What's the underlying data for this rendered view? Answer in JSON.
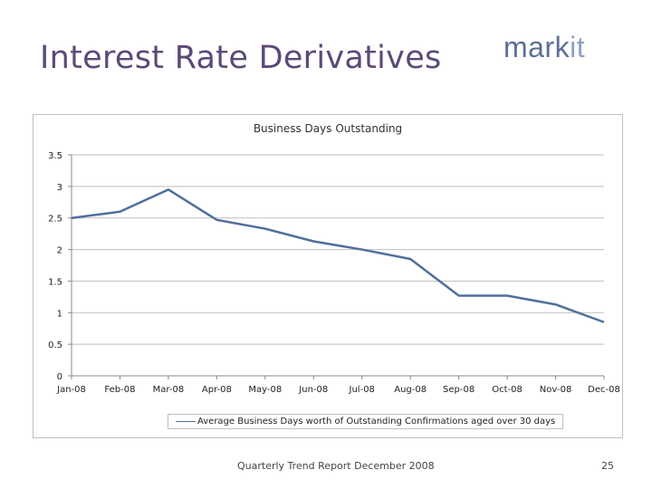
{
  "slide": {
    "title": "Interest Rate Derivatives",
    "logo_main": "mark",
    "logo_accent": "it",
    "footer": "Quarterly Trend Report December 2008",
    "page_number": "25"
  },
  "chart_data": {
    "type": "line",
    "title": "Business Days Outstanding",
    "xlabel": "",
    "ylabel": "",
    "categories": [
      "Jan-08",
      "Feb-08",
      "Mar-08",
      "Apr-08",
      "May-08",
      "Jun-08",
      "Jul-08",
      "Aug-08",
      "Sep-08",
      "Oct-08",
      "Nov-08",
      "Dec-08"
    ],
    "series": [
      {
        "name": "Average Business Days worth of Outstanding Confirmations aged over 30 days",
        "values": [
          2.5,
          2.6,
          2.95,
          2.47,
          2.33,
          2.13,
          2.0,
          1.85,
          1.27,
          1.27,
          1.13,
          0.85
        ],
        "color": "#4f6f9d"
      }
    ],
    "ylim": [
      0,
      3.5
    ],
    "yticks": [
      "0",
      "0.5",
      "1",
      "1.5",
      "2",
      "2.5",
      "3",
      "3.5"
    ],
    "grid": true,
    "legend_position": "bottom"
  }
}
